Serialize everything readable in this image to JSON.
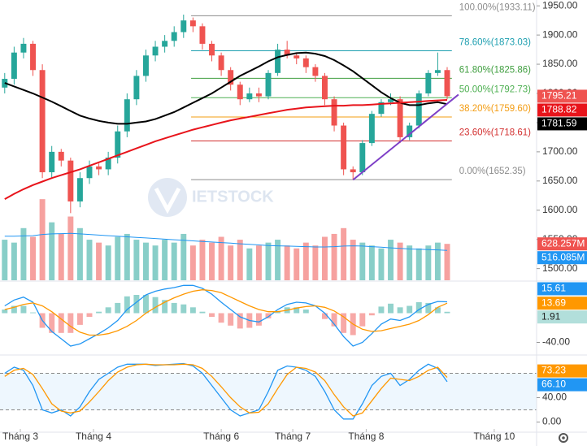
{
  "chart_data": {
    "type": "candlestick",
    "watermark": "IETSTOCK",
    "xlim": [
      -0.5,
      56.5
    ],
    "xticks": [
      {
        "value": 1.66,
        "label": "Tháng 3"
      },
      {
        "value": 9.43,
        "label": "Tháng 4"
      },
      {
        "value": 23.0,
        "label": "Tháng 6"
      },
      {
        "value": 30.6,
        "label": "Tháng 7"
      },
      {
        "value": 38.4,
        "label": "Tháng 8"
      },
      {
        "value": 52.0,
        "label": "Tháng 10"
      }
    ],
    "ylim": [
      1480,
      1960
    ],
    "yticks": [
      {
        "value": 1500,
        "label": "1500.00"
      },
      {
        "value": 1550,
        "label": "1550.00"
      },
      {
        "value": 1600,
        "label": "1600.00"
      },
      {
        "value": 1650,
        "label": "1650.00"
      },
      {
        "value": 1700,
        "label": "1700.00"
      },
      {
        "value": 1750,
        "label": "1750.00"
      },
      {
        "value": 1800,
        "label": "1800.00"
      },
      {
        "value": 1850,
        "label": "1850.00"
      },
      {
        "value": 1900,
        "label": "1900.00"
      },
      {
        "value": 1950,
        "label": "1950.00"
      }
    ],
    "up_color": "#26a69a",
    "down_color": "#ef5350",
    "open": [
      1810,
      1825,
      1870,
      1885,
      1840,
      1665,
      1700,
      1685,
      1615,
      1655,
      1675,
      1670,
      1690,
      1735,
      1790,
      1830,
      1865,
      1880,
      1890,
      1905,
      1925,
      1915,
      1885,
      1865,
      1840,
      1815,
      1790,
      1800,
      1795,
      1835,
      1875,
      1865,
      1860,
      1845,
      1830,
      1790,
      1745,
      1670,
      1665,
      1715,
      1765,
      1785,
      1790,
      1725,
      1745,
      1800,
      1835,
      1840
    ],
    "high": [
      1835,
      1880,
      1895,
      1890,
      1850,
      1710,
      1705,
      1690,
      1665,
      1685,
      1680,
      1700,
      1745,
      1800,
      1840,
      1875,
      1890,
      1900,
      1915,
      1935,
      1930,
      1920,
      1890,
      1870,
      1845,
      1820,
      1810,
      1810,
      1840,
      1885,
      1890,
      1870,
      1865,
      1850,
      1835,
      1795,
      1750,
      1675,
      1720,
      1770,
      1790,
      1800,
      1795,
      1750,
      1805,
      1840,
      1870,
      1845
    ],
    "low": [
      1800,
      1815,
      1860,
      1830,
      1655,
      1655,
      1675,
      1595,
      1605,
      1645,
      1660,
      1660,
      1680,
      1725,
      1780,
      1820,
      1855,
      1870,
      1880,
      1895,
      1905,
      1875,
      1855,
      1830,
      1805,
      1780,
      1785,
      1785,
      1790,
      1830,
      1860,
      1850,
      1835,
      1820,
      1780,
      1735,
      1660,
      1652,
      1660,
      1710,
      1760,
      1780,
      1715,
      1720,
      1740,
      1795,
      1830,
      1790
    ],
    "close": [
      1825,
      1870,
      1885,
      1840,
      1665,
      1700,
      1685,
      1615,
      1655,
      1675,
      1670,
      1690,
      1735,
      1790,
      1830,
      1865,
      1880,
      1890,
      1905,
      1925,
      1915,
      1885,
      1865,
      1840,
      1815,
      1790,
      1800,
      1795,
      1835,
      1875,
      1865,
      1860,
      1845,
      1830,
      1790,
      1745,
      1670,
      1665,
      1715,
      1765,
      1785,
      1790,
      1725,
      1745,
      1800,
      1835,
      1840,
      1795.21
    ],
    "ma": [
      {
        "color": "#000000",
        "values": [
          1818,
          1812,
          1806,
          1800,
          1793,
          1786,
          1778,
          1770,
          1762,
          1757,
          1753,
          1750,
          1748,
          1748,
          1750,
          1752,
          1756,
          1762,
          1768,
          1776,
          1784,
          1792,
          1800,
          1810,
          1820,
          1830,
          1838,
          1846,
          1855,
          1862,
          1866,
          1869,
          1870,
          1868,
          1864,
          1857,
          1848,
          1838,
          1826,
          1814,
          1802,
          1792,
          1784,
          1780,
          1780,
          1783,
          1785,
          1781.59
        ]
      },
      {
        "color": "#e8141b",
        "values": [
          1619,
          1628,
          1636,
          1643,
          1649,
          1655,
          1660,
          1665,
          1670,
          1676,
          1682,
          1688,
          1694,
          1700,
          1706,
          1712,
          1718,
          1723,
          1728,
          1733,
          1738,
          1742,
          1746,
          1750,
          1754,
          1757,
          1760,
          1763,
          1766,
          1769,
          1772,
          1774,
          1776,
          1777,
          1778,
          1779,
          1779,
          1780,
          1780,
          1781,
          1782,
          1783,
          1784,
          1785,
          1786,
          1787,
          1788,
          1788.82
        ]
      }
    ],
    "fib": {
      "xrange": [
        19.8,
        47.5
      ],
      "levels": [
        {
          "value": 1933.11,
          "label": "100.00%(1933.11)",
          "color": "#8c8c8c"
        },
        {
          "value": 1873.03,
          "label": "78.60%(1873.03)",
          "color": "#1e9fb0"
        },
        {
          "value": 1825.86,
          "label": "61.80%(1825.86)",
          "color": "#3f9e3f"
        },
        {
          "value": 1792.73,
          "label": "50.00%(1792.73)",
          "color": "#4caf50"
        },
        {
          "value": 1759.6,
          "label": "38.20%(1759.60)",
          "color": "#f39c12"
        },
        {
          "value": 1718.61,
          "label": "23.60%(1718.61)",
          "color": "#d32f2f"
        },
        {
          "value": 1652.35,
          "label": "0.00%(1652.35)",
          "color": "#8c8c8c"
        }
      ]
    },
    "trendline": {
      "color": "#7e3fc7",
      "x": [
        37,
        48.2
      ],
      "values": [
        1652,
        1798
      ]
    },
    "volume": {
      "ylim": [
        0,
        1500
      ],
      "values": [
        700,
        650,
        900,
        750,
        1400,
        1000,
        800,
        1100,
        900,
        700,
        650,
        600,
        750,
        800,
        700,
        650,
        600,
        700,
        650,
        800,
        600,
        700,
        650,
        750,
        600,
        700,
        550,
        600,
        650,
        700,
        600,
        550,
        650,
        600,
        750,
        800,
        900,
        700,
        650,
        600,
        550,
        700,
        650,
        600,
        550,
        600,
        650,
        628.257
      ],
      "value_labels": [
        null,
        null,
        null,
        null,
        null,
        null,
        null,
        null,
        null,
        null,
        null,
        null,
        null,
        null,
        null,
        null,
        null,
        null,
        null,
        null,
        null,
        null,
        null,
        null,
        null,
        null,
        null,
        null,
        null,
        null,
        null,
        null,
        null,
        null,
        null,
        null,
        null,
        null,
        null,
        null,
        null,
        null,
        null,
        null,
        null,
        null,
        null,
        "628.257M"
      ],
      "ma": {
        "color": "#2196f3",
        "values": [
          760,
          760,
          765,
          770,
          790,
          800,
          805,
          810,
          800,
          790,
          780,
          770,
          760,
          750,
          740,
          730,
          720,
          710,
          700,
          690,
          680,
          670,
          660,
          650,
          640,
          630,
          620,
          610,
          600,
          595,
          590,
          585,
          580,
          575,
          575,
          580,
          590,
          595,
          590,
          580,
          570,
          560,
          550,
          540,
          535,
          530,
          525,
          516.085
        ],
        "value_labels": [
          null,
          null,
          null,
          null,
          null,
          null,
          null,
          null,
          null,
          null,
          null,
          null,
          null,
          null,
          null,
          null,
          null,
          null,
          null,
          null,
          null,
          null,
          null,
          null,
          null,
          null,
          null,
          null,
          null,
          null,
          null,
          null,
          null,
          null,
          null,
          null,
          null,
          null,
          null,
          null,
          null,
          null,
          null,
          null,
          null,
          null,
          null,
          "516.085M"
        ]
      }
    },
    "macd": {
      "ylim": [
        -55,
        45
      ],
      "yticks": [
        {
          "value": -40,
          "label": "-40.00"
        }
      ],
      "macd": {
        "color": "#2196f3",
        "values": [
          10,
          18,
          22,
          15,
          -10,
          -25,
          -35,
          -45,
          -42,
          -35,
          -28,
          -20,
          -10,
          5,
          15,
          25,
          30,
          33,
          35,
          38,
          38,
          34,
          26,
          15,
          5,
          -5,
          -10,
          -12,
          -5,
          5,
          12,
          15,
          14,
          10,
          0,
          -15,
          -32,
          -45,
          -40,
          -28,
          -15,
          -8,
          -10,
          -5,
          5,
          12,
          16,
          15.61
        ]
      },
      "signal": {
        "color": "#ff9800",
        "values": [
          5,
          8,
          12,
          14,
          10,
          2,
          -8,
          -18,
          -26,
          -30,
          -30,
          -28,
          -24,
          -18,
          -10,
          0,
          8,
          15,
          21,
          26,
          30,
          32,
          31,
          28,
          22,
          16,
          10,
          5,
          2,
          2,
          4,
          7,
          9,
          10,
          8,
          3,
          -5,
          -15,
          -22,
          -25,
          -24,
          -21,
          -18,
          -15,
          -10,
          -2,
          8,
          13.69
        ]
      },
      "histogram": {
        "up_color": "#26a69a",
        "down_color": "#ef5350",
        "values": [
          5,
          10,
          10,
          1,
          -20,
          -27,
          -27,
          -27,
          -16,
          -5,
          2,
          8,
          14,
          23,
          25,
          25,
          22,
          18,
          14,
          12,
          8,
          2,
          -5,
          -13,
          -17,
          -21,
          -20,
          -17,
          -7,
          3,
          8,
          8,
          5,
          0,
          -8,
          -18,
          -27,
          -30,
          -18,
          -3,
          9,
          13,
          8,
          10,
          15,
          14,
          8,
          1.91
        ]
      }
    },
    "stoch": {
      "ylim": [
        -14,
        106
      ],
      "yticks": [
        {
          "value": 40,
          "label": "40.00"
        },
        {
          "value": 0,
          "label": "0.00"
        }
      ],
      "bands": [
        20,
        80
      ],
      "k": {
        "color": "#2196f3",
        "values": [
          80,
          90,
          85,
          60,
          20,
          15,
          20,
          10,
          25,
          50,
          70,
          80,
          90,
          95,
          95,
          95,
          93,
          94,
          95,
          96,
          92,
          80,
          60,
          40,
          20,
          10,
          15,
          20,
          50,
          85,
          92,
          90,
          85,
          75,
          50,
          20,
          5,
          5,
          30,
          60,
          75,
          80,
          60,
          70,
          85,
          95,
          88,
          66.1
        ],
        "value_labels": [
          null,
          null,
          null,
          null,
          null,
          null,
          null,
          null,
          null,
          null,
          null,
          null,
          null,
          null,
          null,
          null,
          null,
          null,
          null,
          null,
          null,
          null,
          null,
          null,
          null,
          null,
          null,
          null,
          null,
          null,
          null,
          null,
          null,
          null,
          null,
          null,
          null,
          null,
          null,
          null,
          null,
          null,
          null,
          null,
          null,
          null,
          null,
          "66.10"
        ]
      },
      "d": {
        "color": "#ff9800",
        "values": [
          75,
          85,
          88,
          78,
          55,
          30,
          18,
          15,
          18,
          33,
          50,
          68,
          82,
          90,
          94,
          95,
          94,
          94,
          94,
          95,
          94,
          88,
          75,
          58,
          40,
          25,
          15,
          16,
          30,
          55,
          78,
          90,
          88,
          82,
          68,
          45,
          25,
          10,
          15,
          35,
          55,
          72,
          70,
          68,
          75,
          85,
          90,
          73.23
        ]
      }
    }
  }
}
